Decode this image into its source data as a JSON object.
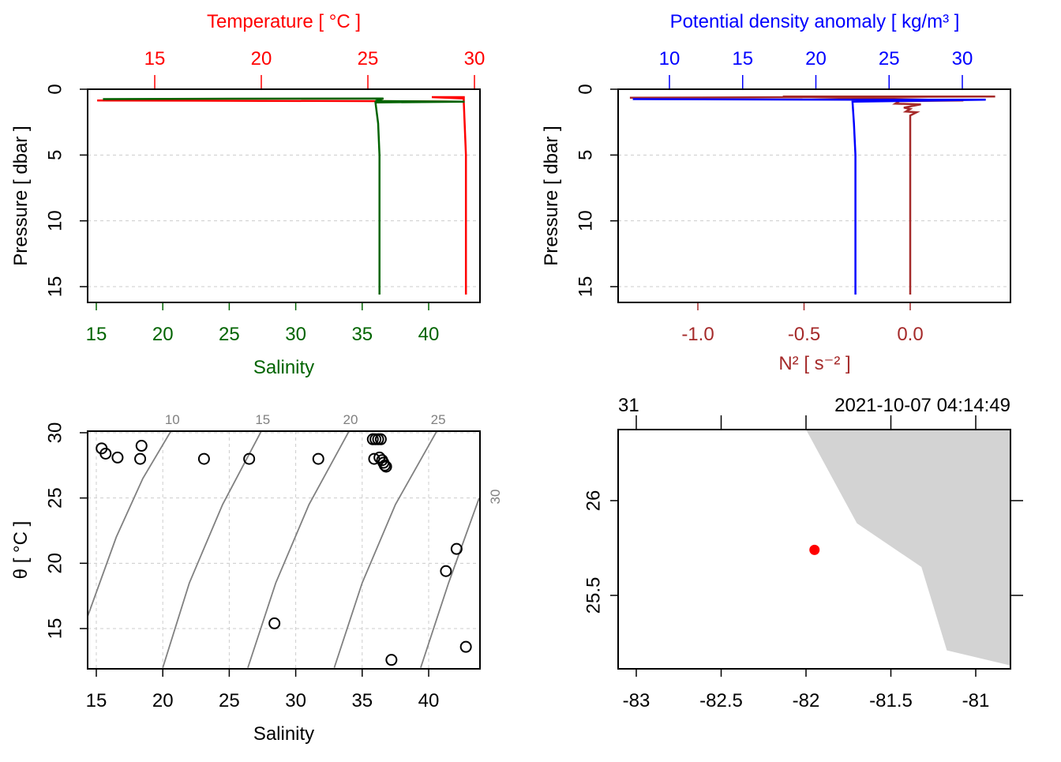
{
  "chart_data": [
    {
      "type": "line",
      "panel": "profile-temperature-salinity",
      "xlabel_top": "Temperature [ °C ]",
      "xlabel_bottom": "Salinity",
      "ylabel": "Pressure [ dbar ]",
      "colors": {
        "temperature": "#ff0000",
        "salinity": "#006400"
      },
      "x_top": {
        "ticks": [
          15,
          20,
          25,
          30
        ],
        "range": [
          11.9,
          30.1
        ]
      },
      "x_bottom": {
        "ticks": [
          15,
          20,
          25,
          30,
          35,
          40
        ],
        "range": [
          14.3,
          43.8
        ]
      },
      "y": {
        "ticks": [
          0,
          5,
          10,
          15
        ],
        "range": [
          16.2,
          0
        ],
        "reversed": true
      },
      "grid": true,
      "series": [
        {
          "name": "Temperature",
          "axis": "top",
          "points": [
            [
              12.3,
              0.85
            ],
            [
              20,
              0.88
            ],
            [
              25,
              0.9
            ],
            [
              29.5,
              0.95
            ],
            [
              29.5,
              0.6
            ],
            [
              28.0,
              0.6
            ],
            [
              29.5,
              0.7
            ],
            [
              29.5,
              1.0
            ],
            [
              29.6,
              5
            ],
            [
              29.6,
              10
            ],
            [
              29.6,
              15.6
            ]
          ]
        },
        {
          "name": "Salinity",
          "axis": "bottom",
          "points": [
            [
              15.5,
              0.75
            ],
            [
              25,
              0.72
            ],
            [
              36.6,
              0.7
            ],
            [
              36,
              0.9
            ],
            [
              42.7,
              0.95
            ],
            [
              36.0,
              1.0
            ],
            [
              36.2,
              2.6
            ],
            [
              36.3,
              5
            ],
            [
              36.3,
              10
            ],
            [
              36.3,
              15.6
            ]
          ]
        }
      ]
    },
    {
      "type": "line",
      "panel": "profile-density-n2",
      "xlabel_top": "Potential density anomaly [ kg/m³ ]",
      "xlabel_bottom": "N² [ s⁻² ]",
      "ylabel": "Pressure [ dbar ]",
      "colors": {
        "density": "#0000ff",
        "n2": "#a52a2a"
      },
      "x_top": {
        "ticks": [
          10,
          15,
          20,
          25,
          30
        ],
        "range": [
          6.5,
          32.6
        ]
      },
      "x_bottom": {
        "ticks": [
          -1.0,
          -0.5,
          0.0
        ],
        "range": [
          -1.37,
          0.47
        ]
      },
      "y": {
        "ticks": [
          0,
          5,
          10,
          15
        ],
        "range": [
          16.2,
          0
        ],
        "reversed": true
      },
      "grid": true,
      "series": [
        {
          "name": "Potential density anomaly",
          "axis": "top",
          "points": [
            [
              7.5,
              0.75
            ],
            [
              22.6,
              0.8
            ],
            [
              31.6,
              0.8
            ],
            [
              22.5,
              0.95
            ],
            [
              22.6,
              2.6
            ],
            [
              22.7,
              5
            ],
            [
              22.7,
              10
            ],
            [
              22.7,
              15.6
            ]
          ]
        },
        {
          "name": "N2",
          "axis": "bottom",
          "points": [
            [
              -1.32,
              0.65
            ],
            [
              0.4,
              0.55
            ],
            [
              -0.6,
              0.55
            ],
            [
              0.25,
              0.85
            ],
            [
              -0.05,
              0.9
            ],
            [
              -0.07,
              1.1
            ],
            [
              0.05,
              1.15
            ],
            [
              -0.03,
              1.4
            ],
            [
              0.0,
              1.5
            ],
            [
              -0.02,
              1.7
            ],
            [
              0.03,
              1.75
            ],
            [
              0.0,
              2.0
            ],
            [
              0.0,
              5
            ],
            [
              0.0,
              10
            ],
            [
              0.0,
              15.6
            ]
          ]
        }
      ]
    },
    {
      "type": "scatter",
      "panel": "ts-diagram",
      "xlabel": "Salinity",
      "ylabel": "θ [ °C ]",
      "x": {
        "ticks": [
          15,
          20,
          25,
          30,
          35,
          40
        ],
        "range": [
          14.3,
          43.8
        ]
      },
      "y": {
        "ticks": [
          15,
          20,
          25,
          30
        ],
        "range": [
          12.0,
          30.1
        ]
      },
      "grid": true,
      "isopycnals": [
        {
          "label": "10",
          "points": [
            [
              14.3,
              15.8
            ],
            [
              16.5,
              22
            ],
            [
              18.5,
              26.5
            ],
            [
              20.6,
              30.1
            ]
          ]
        },
        {
          "label": "15",
          "points": [
            [
              20.0,
              12.0
            ],
            [
              22,
              18.5
            ],
            [
              24.5,
              24.5
            ],
            [
              27.4,
              30.1
            ]
          ]
        },
        {
          "label": "20",
          "points": [
            [
              26.4,
              12.0
            ],
            [
              28.5,
              18.5
            ],
            [
              31,
              24.5
            ],
            [
              34.0,
              30.1
            ]
          ]
        },
        {
          "label": "25",
          "points": [
            [
              32.9,
              12.0
            ],
            [
              35,
              18.5
            ],
            [
              37.5,
              24.5
            ],
            [
              40.6,
              30.1
            ]
          ]
        },
        {
          "label": "30",
          "points": [
            [
              39.4,
              12.0
            ],
            [
              41.5,
              18.5
            ],
            [
              43.8,
              25.0
            ]
          ]
        }
      ],
      "points": [
        [
          15.4,
          28.8
        ],
        [
          15.7,
          28.4
        ],
        [
          16.6,
          28.1
        ],
        [
          18.3,
          28.0
        ],
        [
          18.4,
          29.0
        ],
        [
          23.1,
          28.0
        ],
        [
          26.5,
          28.0
        ],
        [
          31.7,
          28.0
        ],
        [
          35.8,
          29.5
        ],
        [
          36.0,
          29.5
        ],
        [
          36.2,
          29.5
        ],
        [
          36.4,
          29.5
        ],
        [
          35.9,
          28.0
        ],
        [
          36.3,
          28.1
        ],
        [
          36.5,
          27.9
        ],
        [
          36.6,
          27.7
        ],
        [
          36.7,
          27.5
        ],
        [
          36.8,
          27.4
        ],
        [
          28.4,
          15.4
        ],
        [
          37.2,
          12.6
        ],
        [
          41.3,
          19.4
        ],
        [
          42.1,
          21.1
        ],
        [
          42.8,
          13.6
        ]
      ]
    },
    {
      "type": "scatter",
      "panel": "station-map",
      "top_labels": [
        "31",
        "2021-10-07 04:14:49"
      ],
      "x": {
        "ticks": [
          -83,
          -82.5,
          -82,
          -81.5,
          -81
        ],
        "range": [
          -83.11,
          -80.79
        ]
      },
      "y": {
        "ticks": [
          25.5,
          26
        ],
        "range": [
          25.13,
          26.38
        ]
      },
      "land_polygon": [
        [
          -82.0,
          26.38
        ],
        [
          -81.7,
          25.88
        ],
        [
          -81.32,
          25.65
        ],
        [
          -81.17,
          25.21
        ],
        [
          -80.79,
          25.13
        ],
        [
          -80.79,
          26.38
        ]
      ],
      "station": {
        "lon": -81.95,
        "lat": 25.74,
        "color": "#ff0000"
      },
      "land_color": "#d3d3d3"
    }
  ]
}
